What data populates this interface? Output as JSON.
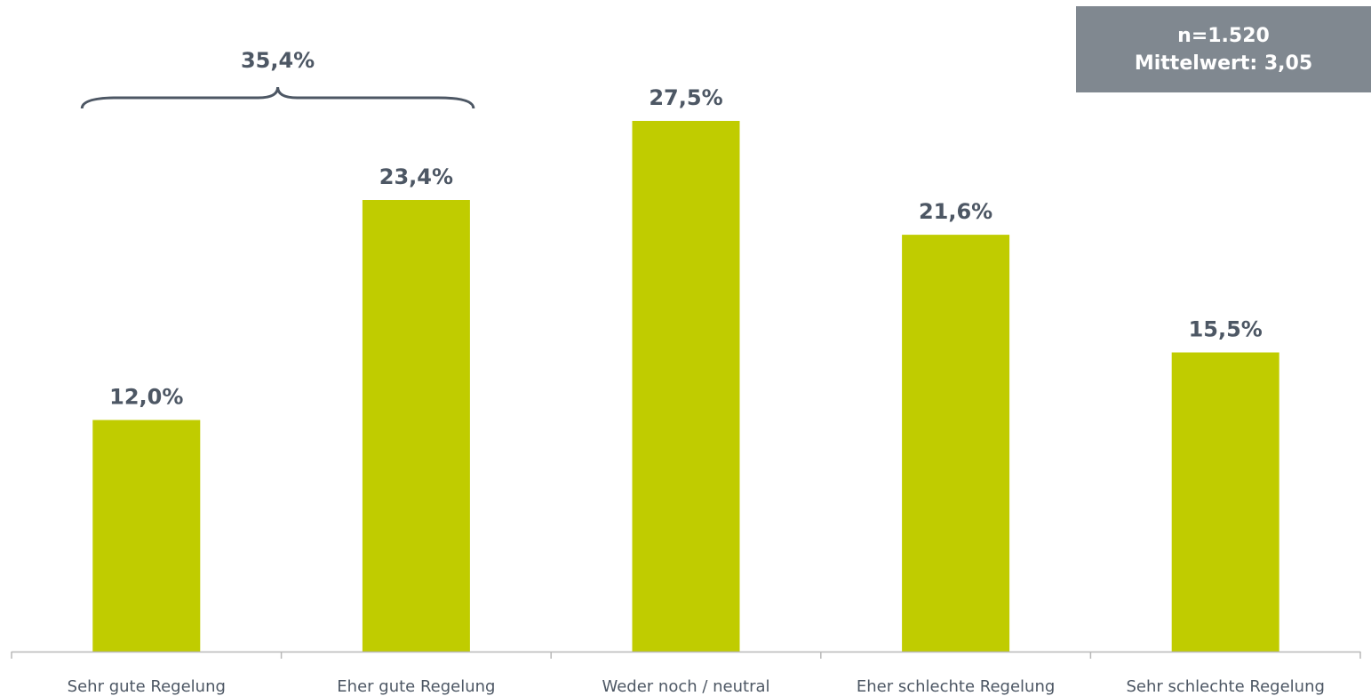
{
  "colors": {
    "bar": "#c0cc00",
    "text": "#4d5764",
    "box_bg": "#808890",
    "box_text": "#ffffff",
    "axis": "#b8b8b8"
  },
  "info_box": {
    "n_line": "n=1.520",
    "mean_line": "Mittelwert: 3,05"
  },
  "bracket": {
    "label": "35,4%",
    "spans": [
      "Sehr gute Regelung",
      "Eher gute Regelung"
    ]
  },
  "chart_data": {
    "type": "bar",
    "categories": [
      "Sehr gute Regelung",
      "Eher gute Regelung",
      "Weder noch / neutral",
      "Eher schlechte Regelung",
      "Sehr schlechte Regelung"
    ],
    "values": [
      12.0,
      23.4,
      27.5,
      21.6,
      15.5
    ],
    "value_labels": [
      "12,0%",
      "23,4%",
      "27,5%",
      "21,6%",
      "15,5%"
    ],
    "title": "",
    "xlabel": "",
    "ylabel": "",
    "ylim": [
      0,
      28
    ],
    "grid": false,
    "legend": "none"
  }
}
